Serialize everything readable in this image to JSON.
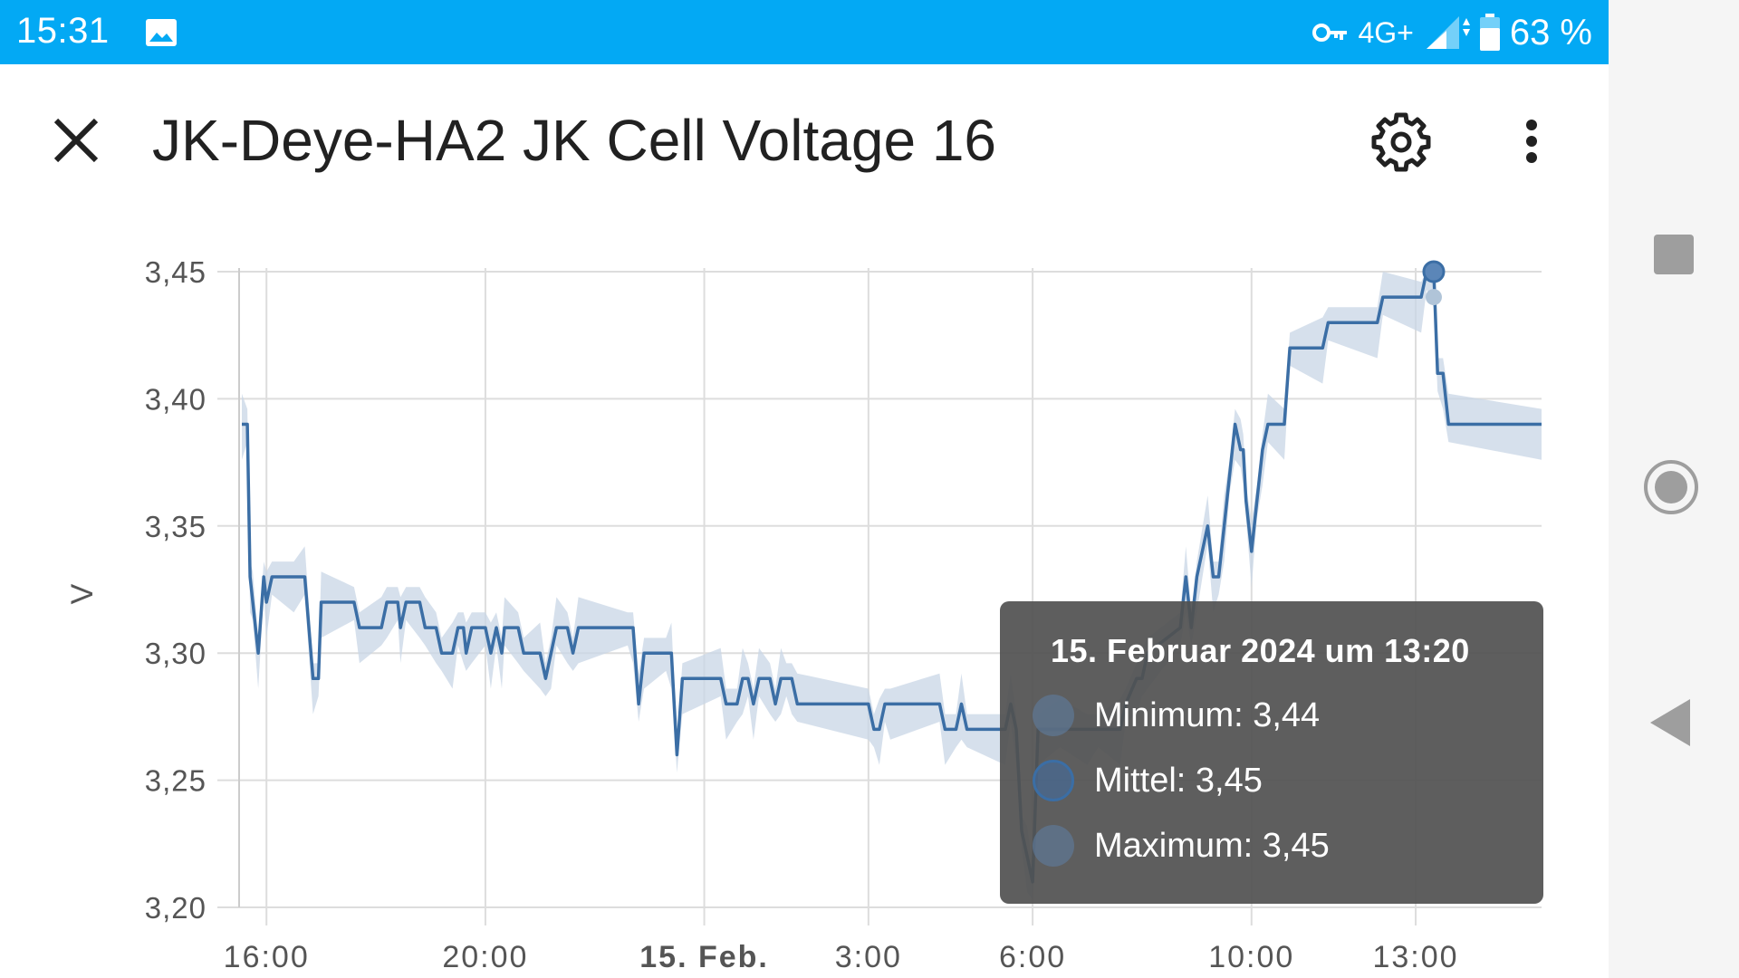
{
  "status_bar": {
    "time": "15:31",
    "network": "4G+",
    "battery": "63 %",
    "icons": [
      "image-icon",
      "vpn-key-icon",
      "signal-icon",
      "battery-icon"
    ]
  },
  "header": {
    "title": "JK-Deye-HA2 JK Cell Voltage 16",
    "close_icon": "close-icon",
    "settings_icon": "gear-icon",
    "more_icon": "more-vert-icon"
  },
  "tooltip": {
    "title": "15. Februar 2024 um 13:20",
    "rows": [
      {
        "label": "Minimum: 3,44",
        "color": "#b0c4d8"
      },
      {
        "label": "Mittel: 3,45",
        "color": "#4a78a8"
      },
      {
        "label": "Maximum: 3,45",
        "color": "#b0c4d8"
      }
    ]
  },
  "colors": {
    "accent": "#03a9f4",
    "line": "#3b6ea5",
    "band": "#c8d6e5"
  },
  "chart_data": {
    "type": "line",
    "ylabel": "V",
    "ylim": [
      3.2,
      3.45
    ],
    "y_ticks": [
      "3,45",
      "3,40",
      "3,35",
      "3,30",
      "3,25",
      "3,20"
    ],
    "x_ticks": [
      {
        "label": "16:00",
        "h": 16,
        "bold": false
      },
      {
        "label": "20:00",
        "h": 20,
        "bold": false
      },
      {
        "label": "15. Feb.",
        "h": 24,
        "bold": true
      },
      {
        "label": "3:00",
        "h": 27,
        "bold": false
      },
      {
        "label": "6:00",
        "h": 30,
        "bold": false
      },
      {
        "label": "10:00",
        "h": 34,
        "bold": false
      },
      {
        "label": "13:00",
        "h": 37,
        "bold": false
      }
    ],
    "x_range_hours": [
      15.5,
      39.3
    ],
    "series": [
      {
        "name": "Mittel",
        "points": [
          [
            15.55,
            3.39
          ],
          [
            15.65,
            3.39
          ],
          [
            15.7,
            3.33
          ],
          [
            15.75,
            3.32
          ],
          [
            15.85,
            3.3
          ],
          [
            15.95,
            3.33
          ],
          [
            16.0,
            3.32
          ],
          [
            16.1,
            3.33
          ],
          [
            16.5,
            3.33
          ],
          [
            16.7,
            3.33
          ],
          [
            16.85,
            3.29
          ],
          [
            16.95,
            3.29
          ],
          [
            17.0,
            3.32
          ],
          [
            17.6,
            3.32
          ],
          [
            17.7,
            3.31
          ],
          [
            18.1,
            3.31
          ],
          [
            18.2,
            3.32
          ],
          [
            18.4,
            3.32
          ],
          [
            18.45,
            3.31
          ],
          [
            18.55,
            3.32
          ],
          [
            18.8,
            3.32
          ],
          [
            18.9,
            3.31
          ],
          [
            19.1,
            3.31
          ],
          [
            19.2,
            3.3
          ],
          [
            19.4,
            3.3
          ],
          [
            19.5,
            3.31
          ],
          [
            19.6,
            3.31
          ],
          [
            19.65,
            3.3
          ],
          [
            19.75,
            3.31
          ],
          [
            20.0,
            3.31
          ],
          [
            20.1,
            3.3
          ],
          [
            20.2,
            3.31
          ],
          [
            20.3,
            3.3
          ],
          [
            20.35,
            3.31
          ],
          [
            20.6,
            3.31
          ],
          [
            20.7,
            3.3
          ],
          [
            21.0,
            3.3
          ],
          [
            21.1,
            3.29
          ],
          [
            21.2,
            3.3
          ],
          [
            21.3,
            3.31
          ],
          [
            21.5,
            3.31
          ],
          [
            21.6,
            3.3
          ],
          [
            21.7,
            3.31
          ],
          [
            22.6,
            3.31
          ],
          [
            22.7,
            3.31
          ],
          [
            22.8,
            3.28
          ],
          [
            22.9,
            3.3
          ],
          [
            23.3,
            3.3
          ],
          [
            23.4,
            3.3
          ],
          [
            23.5,
            3.26
          ],
          [
            23.6,
            3.29
          ],
          [
            24.3,
            3.29
          ],
          [
            24.4,
            3.28
          ],
          [
            24.6,
            3.28
          ],
          [
            24.7,
            3.29
          ],
          [
            24.8,
            3.29
          ],
          [
            24.9,
            3.28
          ],
          [
            25.0,
            3.29
          ],
          [
            25.2,
            3.29
          ],
          [
            25.3,
            3.28
          ],
          [
            25.4,
            3.29
          ],
          [
            25.5,
            3.29
          ],
          [
            25.6,
            3.29
          ],
          [
            25.7,
            3.28
          ],
          [
            27.0,
            3.28
          ],
          [
            27.1,
            3.27
          ],
          [
            27.2,
            3.27
          ],
          [
            27.3,
            3.28
          ],
          [
            27.4,
            3.28
          ],
          [
            28.3,
            3.28
          ],
          [
            28.4,
            3.27
          ],
          [
            28.6,
            3.27
          ],
          [
            28.7,
            3.28
          ],
          [
            28.8,
            3.27
          ],
          [
            29.5,
            3.27
          ],
          [
            29.6,
            3.28
          ],
          [
            29.7,
            3.27
          ],
          [
            29.8,
            3.23
          ],
          [
            29.9,
            3.22
          ],
          [
            30.0,
            3.21
          ],
          [
            30.1,
            3.27
          ],
          [
            30.5,
            3.27
          ],
          [
            31.0,
            3.27
          ],
          [
            31.2,
            3.27
          ],
          [
            31.6,
            3.27
          ],
          [
            31.7,
            3.28
          ],
          [
            31.9,
            3.29
          ],
          [
            32.0,
            3.29
          ],
          [
            32.1,
            3.3
          ],
          [
            32.7,
            3.31
          ],
          [
            32.8,
            3.33
          ],
          [
            32.9,
            3.31
          ],
          [
            33.0,
            3.33
          ],
          [
            33.2,
            3.35
          ],
          [
            33.3,
            3.33
          ],
          [
            33.4,
            3.33
          ],
          [
            33.5,
            3.35
          ],
          [
            33.6,
            3.37
          ],
          [
            33.7,
            3.39
          ],
          [
            33.8,
            3.38
          ],
          [
            33.85,
            3.38
          ],
          [
            33.9,
            3.36
          ],
          [
            34.0,
            3.34
          ],
          [
            34.1,
            3.36
          ],
          [
            34.2,
            3.38
          ],
          [
            34.3,
            3.39
          ],
          [
            34.6,
            3.39
          ],
          [
            34.7,
            3.42
          ],
          [
            35.3,
            3.42
          ],
          [
            35.4,
            3.43
          ],
          [
            36.3,
            3.43
          ],
          [
            36.4,
            3.44
          ],
          [
            37.1,
            3.44
          ],
          [
            37.2,
            3.45
          ],
          [
            37.33,
            3.45
          ],
          [
            37.4,
            3.41
          ],
          [
            37.5,
            3.41
          ],
          [
            37.6,
            3.39
          ],
          [
            39.3,
            3.39
          ]
        ]
      }
    ]
  }
}
